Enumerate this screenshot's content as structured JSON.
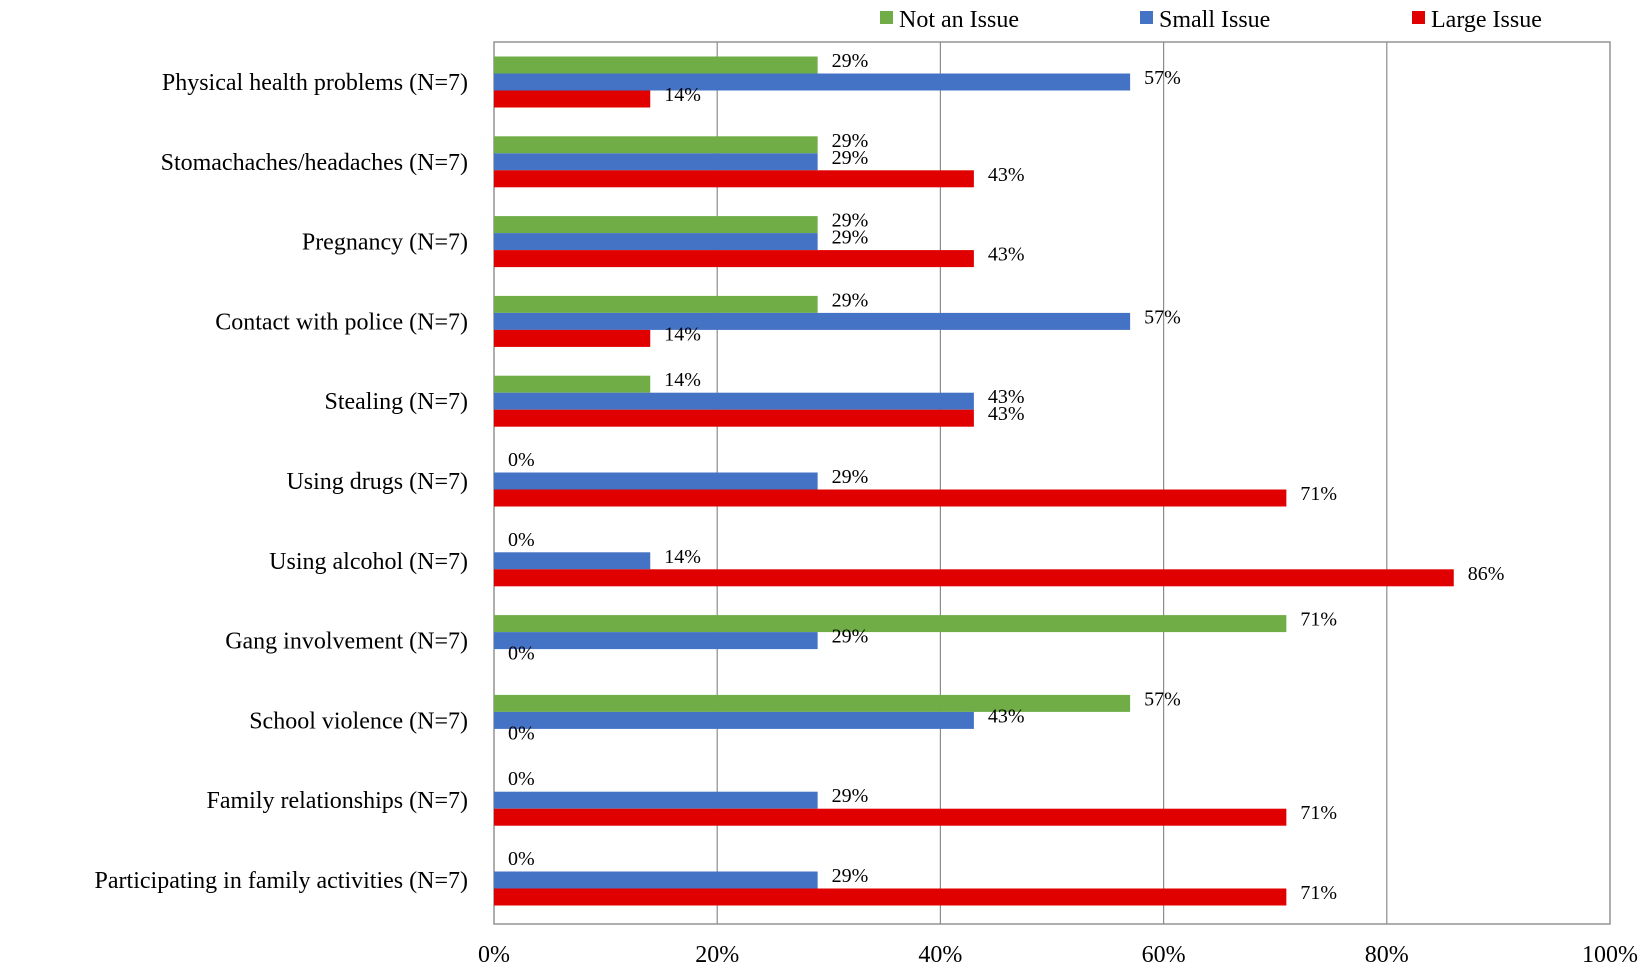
{
  "chart_data": {
    "type": "bar",
    "orientation": "horizontal",
    "title": "",
    "xlabel": "",
    "ylabel": "",
    "xlim": [
      0,
      100
    ],
    "x_ticks": [
      "0%",
      "20%",
      "40%",
      "60%",
      "80%",
      "100%"
    ],
    "grid": "vertical",
    "legend_position": "top-right",
    "categories": [
      "Physical health problems (N=7)",
      "Stomachaches/headaches  (N=7)",
      "Pregnancy (N=7)",
      "Contact with police (N=7)",
      "Stealing (N=7)",
      "Using drugs (N=7)",
      "Using alcohol (N=7)",
      "Gang involvement (N=7)",
      "School violence  (N=7)",
      "Family relationships (N=7)",
      "Participating in family activities (N=7)"
    ],
    "series": [
      {
        "name": "Not an Issue",
        "color": "#70AD47",
        "values": [
          29,
          29,
          29,
          29,
          14,
          0,
          0,
          71,
          57,
          0,
          0
        ],
        "labels": [
          "29%",
          "29%",
          "29%",
          "29%",
          "14%",
          "0%",
          "0%",
          "71%",
          "57%",
          "0%",
          "0%"
        ]
      },
      {
        "name": "Small Issue",
        "color": "#4472C4",
        "values": [
          57,
          29,
          29,
          57,
          43,
          29,
          14,
          29,
          43,
          29,
          29
        ],
        "labels": [
          "57%",
          "29%",
          "29%",
          "57%",
          "43%",
          "29%",
          "14%",
          "29%",
          "43%",
          "29%",
          "29%"
        ]
      },
      {
        "name": "Large Issue",
        "color": "#E00000",
        "values": [
          14,
          43,
          43,
          14,
          43,
          71,
          86,
          0,
          0,
          71,
          71
        ],
        "labels": [
          "14%",
          "43%",
          "43%",
          "14%",
          "43%",
          "71%",
          "86%",
          "0%",
          "0%",
          "71%",
          "71%"
        ]
      }
    ]
  }
}
